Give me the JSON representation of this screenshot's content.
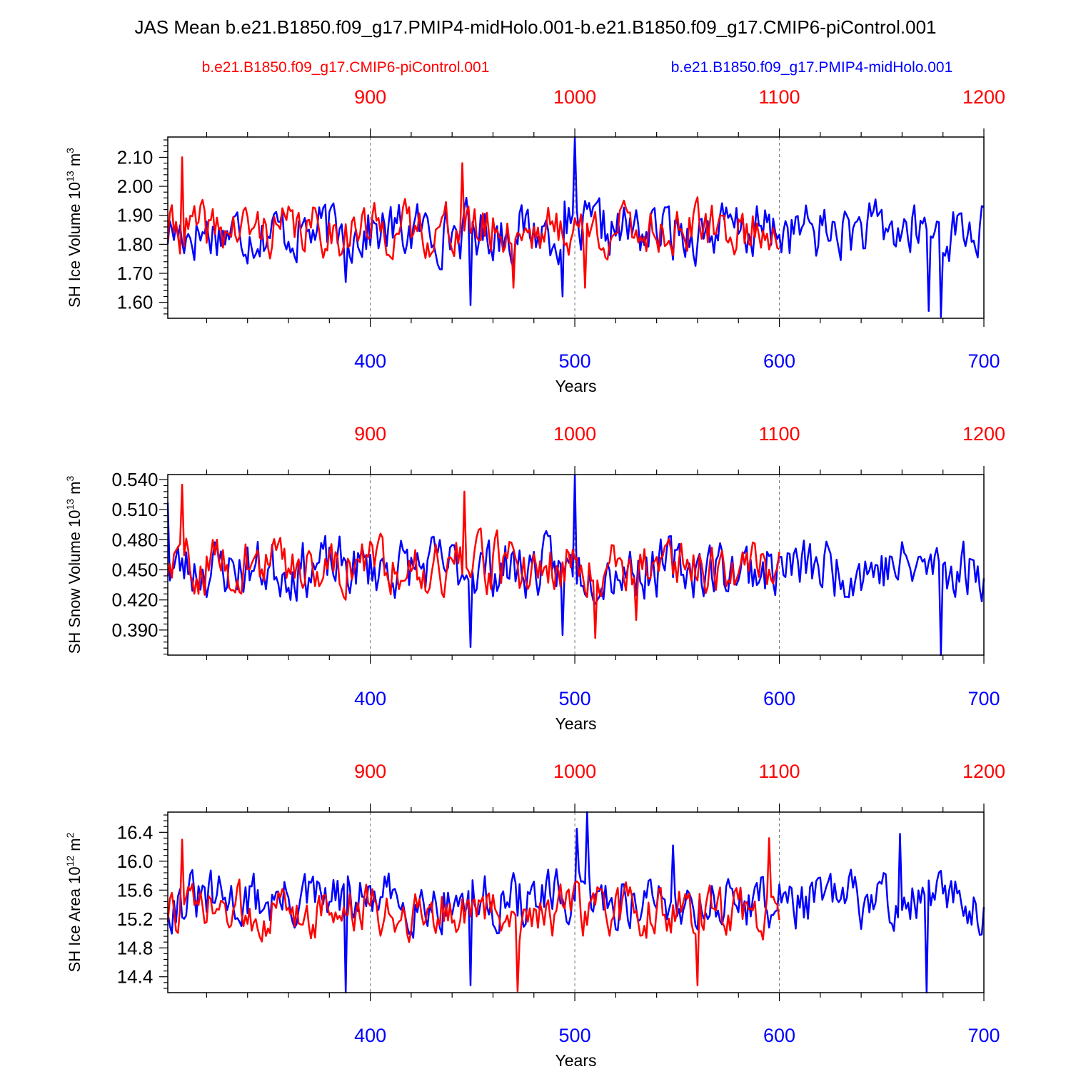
{
  "title": "JAS Mean b.e21.B1850.f09_g17.PMIP4-midHolo.001-b.e21.B1850.f09_g17.CMIP6-piControl.001",
  "legend": {
    "control_label": "b.e21.B1850.f09_g17.CMIP6-piControl.001",
    "midholo_label": "b.e21.B1850.f09_g17.PMIP4-midHolo.001"
  },
  "colors": {
    "control": "#ff0000",
    "midholo": "#0000ff",
    "axis": "#000000"
  },
  "chart_data": [
    {
      "type": "line",
      "ylabel": "SH Ice Volume 10^13 m^3",
      "ylabel_base": "SH Ice Volume 10",
      "ylabel_exp": "13",
      "ylabel_unit": " m",
      "ylabel_unit_exp": "3",
      "xlabel": "Years",
      "xlim_bottom": [
        301,
        700
      ],
      "xlim_top": [
        801,
        1200
      ],
      "bottom_ticks": [
        "400",
        "500",
        "600",
        "700"
      ],
      "top_ticks": [
        "900",
        "1000",
        "1100",
        "1200"
      ],
      "ylim": [
        1.545,
        2.17
      ],
      "yticks": [
        "1.60",
        "1.70",
        "1.80",
        "1.90",
        "2.00",
        "2.10"
      ],
      "series": [
        {
          "name": "b.e21.B1850.f09_g17.PMIP4-midHolo.001",
          "mean": 1.845,
          "amp": 0.09,
          "spike": [
            [
              500,
              2.17
            ],
            [
              388,
              1.67
            ],
            [
              449,
              1.59
            ],
            [
              494,
              1.62
            ],
            [
              679,
              1.55
            ],
            [
              673,
              1.57
            ]
          ],
          "start": 301,
          "end": 700,
          "seed": 17
        },
        {
          "name": "b.e21.B1850.f09_g17.CMIP6-piControl.001",
          "mean": 1.85,
          "amp": 0.08,
          "spike": [
            [
              808,
              2.1
            ],
            [
              945,
              2.08
            ],
            [
              970,
              1.65
            ],
            [
              1005,
              1.65
            ]
          ],
          "start": 801,
          "end": 1100,
          "seed": 41
        }
      ]
    },
    {
      "type": "line",
      "ylabel": "SH Snow Volume 10^13 m^3",
      "ylabel_base": "SH Snow Volume 10",
      "ylabel_exp": "13",
      "ylabel_unit": " m",
      "ylabel_unit_exp": "3",
      "xlabel": "Years",
      "xlim_bottom": [
        301,
        700
      ],
      "xlim_top": [
        801,
        1200
      ],
      "bottom_ticks": [
        "400",
        "500",
        "600",
        "700"
      ],
      "top_ticks": [
        "900",
        "1000",
        "1100",
        "1200"
      ],
      "ylim": [
        0.365,
        0.545
      ],
      "yticks": [
        "0.390",
        "0.420",
        "0.450",
        "0.480",
        "0.510",
        "0.540"
      ],
      "series": [
        {
          "name": "b.e21.B1850.f09_g17.PMIP4-midHolo.001",
          "mean": 0.452,
          "amp": 0.027,
          "spike": [
            [
              500,
              0.545
            ],
            [
              301,
              0.517
            ],
            [
              449,
              0.373
            ],
            [
              679,
              0.365
            ],
            [
              494,
              0.385
            ]
          ],
          "start": 301,
          "end": 700,
          "seed": 23
        },
        {
          "name": "b.e21.B1850.f09_g17.CMIP6-piControl.001",
          "mean": 0.455,
          "amp": 0.025,
          "spike": [
            [
              808,
              0.535
            ],
            [
              946,
              0.528
            ],
            [
              1010,
              0.382
            ],
            [
              1030,
              0.4
            ]
          ],
          "start": 801,
          "end": 1100,
          "seed": 59
        }
      ]
    },
    {
      "type": "line",
      "ylabel": "SH Ice Area 10^12 m^2",
      "ylabel_base": "SH Ice Area 10",
      "ylabel_exp": "12",
      "ylabel_unit": " m",
      "ylabel_unit_exp": "2",
      "xlabel": "Years",
      "xlim_bottom": [
        301,
        700
      ],
      "xlim_top": [
        801,
        1200
      ],
      "bottom_ticks": [
        "400",
        "500",
        "600",
        "700"
      ],
      "top_ticks": [
        "900",
        "1000",
        "1100",
        "1200"
      ],
      "ylim": [
        14.18,
        16.68
      ],
      "yticks": [
        "14.4",
        "14.8",
        "15.2",
        "15.6",
        "16.0",
        "16.4"
      ],
      "series": [
        {
          "name": "b.e21.B1850.f09_g17.PMIP4-midHolo.001",
          "mean": 15.45,
          "amp": 0.35,
          "spike": [
            [
              506,
              16.68
            ],
            [
              501,
              16.45
            ],
            [
              388,
              14.18
            ],
            [
              449,
              14.28
            ],
            [
              672,
              14.18
            ],
            [
              659,
              16.38
            ],
            [
              548,
              16.22
            ]
          ],
          "start": 301,
          "end": 700,
          "seed": 31
        },
        {
          "name": "b.e21.B1850.f09_g17.CMIP6-piControl.001",
          "mean": 15.3,
          "amp": 0.32,
          "spike": [
            [
              808,
              16.3
            ],
            [
              1095,
              16.32
            ],
            [
              972,
              14.2
            ],
            [
              1060,
              14.28
            ]
          ],
          "start": 801,
          "end": 1100,
          "seed": 73
        }
      ]
    }
  ]
}
